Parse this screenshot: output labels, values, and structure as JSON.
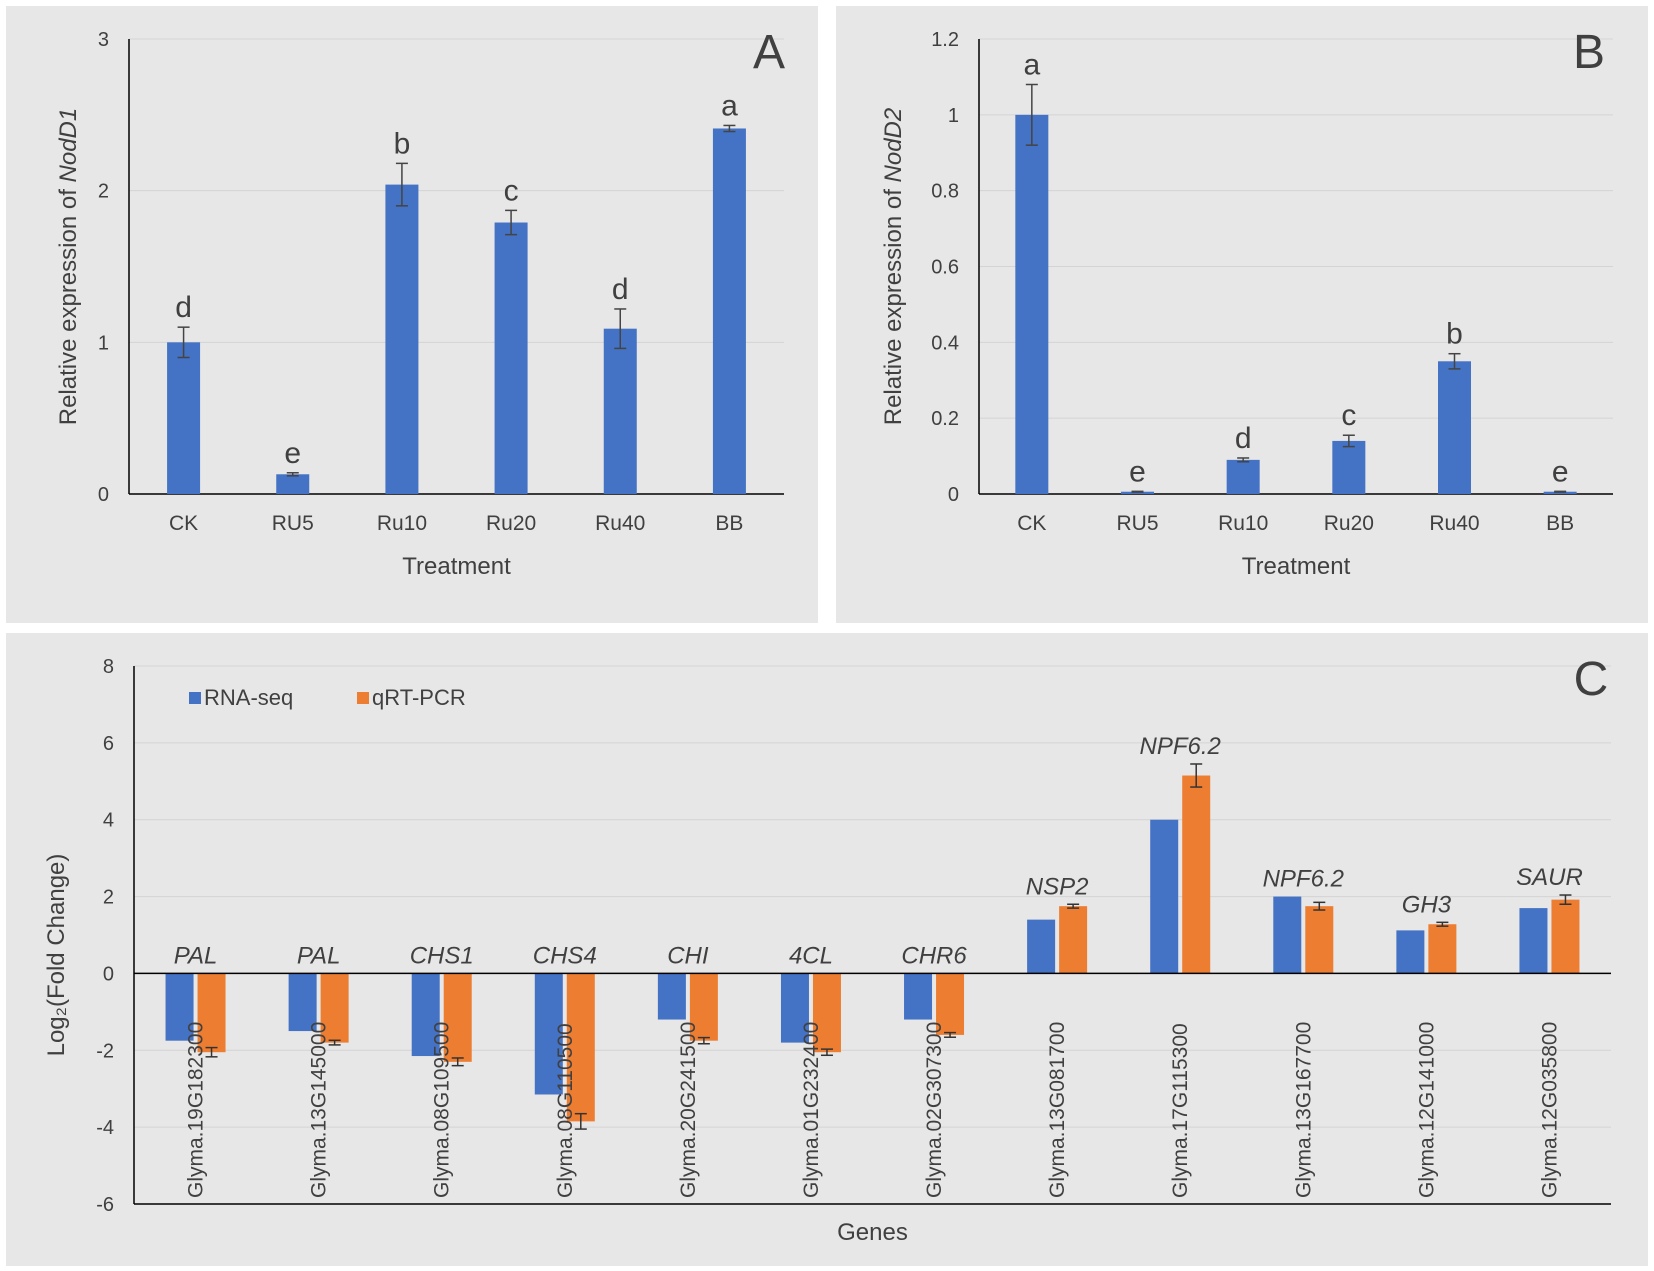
{
  "colors": {
    "blue": "#4472c4",
    "orange": "#ed7d31",
    "grid": "#d4d4d4",
    "axis": "#000000",
    "text": "#404040"
  },
  "chart_data": [
    {
      "id": "A",
      "type": "bar",
      "panel_label": "A",
      "ylabel_prefix": "Relative expression  of  ",
      "ylabel_gene": "NodD1",
      "xlabel": "Treatment",
      "ylim": [
        0,
        3
      ],
      "yticks": [
        0,
        1,
        2,
        3
      ],
      "ytick_labels": [
        "0",
        "1",
        "2",
        "3"
      ],
      "categories": [
        "CK",
        "RU5",
        "Ru10",
        "Ru20",
        "Ru40",
        "BB"
      ],
      "values": [
        1.0,
        0.13,
        2.04,
        1.79,
        1.09,
        2.41
      ],
      "errors": [
        0.1,
        0.01,
        0.14,
        0.08,
        0.13,
        0.02
      ],
      "letters": [
        "d",
        "e",
        "b",
        "c",
        "d",
        "a"
      ]
    },
    {
      "id": "B",
      "type": "bar",
      "panel_label": "B",
      "ylabel_prefix": "Relative expression  of  ",
      "ylabel_gene": "NodD2",
      "xlabel": "Treatment",
      "ylim": [
        0,
        1.2
      ],
      "yticks": [
        0,
        0.2,
        0.4,
        0.6,
        0.8,
        1,
        1.2
      ],
      "ytick_labels": [
        "0",
        "0.2",
        "0.4",
        "0.6",
        "0.8",
        "1",
        "1.2"
      ],
      "categories": [
        "CK",
        "RU5",
        "Ru10",
        "Ru20",
        "Ru40",
        "BB"
      ],
      "values": [
        1.0,
        0.006,
        0.09,
        0.14,
        0.35,
        0.006
      ],
      "errors": [
        0.08,
        0.001,
        0.005,
        0.015,
        0.02,
        0.001
      ],
      "letters": [
        "a",
        "e",
        "d",
        "c",
        "b",
        "e"
      ]
    },
    {
      "id": "C",
      "type": "bar",
      "panel_label": "C",
      "ylabel": "Log₂(Fold Change)",
      "xlabel": "Genes",
      "ylim": [
        -6,
        8
      ],
      "yticks": [
        -6,
        -4,
        -2,
        0,
        2,
        4,
        6,
        8
      ],
      "ytick_labels": [
        "-6",
        "-4",
        "-2",
        "0",
        "2",
        "4",
        "6",
        "8"
      ],
      "categories": [
        "Glyma.19G182300",
        "Glyma.13G145000",
        "Glyma.08G109500",
        "Glyma.08G110500",
        "Glyma.20G241500",
        "Glyma.01G232400",
        "Glyma.02G307300",
        "Glyma.13G081700",
        "Glyma.17G115300",
        "Glyma.13G167700",
        "Glyma.12G141000",
        "Glyma.12G035800"
      ],
      "gene_names": [
        "PAL",
        "PAL",
        "CHS1",
        "CHS4",
        "CHI",
        "4CL",
        "CHR6",
        "NSP2",
        "NPF6.2",
        "NPF6.2",
        "GH3",
        "SAUR"
      ],
      "legend": [
        "RNA-seq",
        "qRT-PCR"
      ],
      "legend_position": "top-left",
      "series": [
        {
          "name": "RNA-seq",
          "values": [
            -1.75,
            -1.5,
            -2.15,
            -3.15,
            -1.2,
            -1.8,
            -1.2,
            1.4,
            4.0,
            2.0,
            1.12,
            1.7
          ],
          "errors": [
            0,
            0,
            0,
            0,
            0,
            0,
            0,
            0,
            0,
            0,
            0,
            0
          ]
        },
        {
          "name": "qRT-PCR",
          "values": [
            -2.05,
            -1.8,
            -2.3,
            -3.85,
            -1.75,
            -2.05,
            -1.6,
            1.75,
            5.15,
            1.75,
            1.28,
            1.92
          ],
          "errors": [
            0.12,
            0.06,
            0.1,
            0.2,
            0.08,
            0.08,
            0.06,
            0.05,
            0.3,
            0.1,
            0.05,
            0.12
          ]
        }
      ]
    }
  ]
}
